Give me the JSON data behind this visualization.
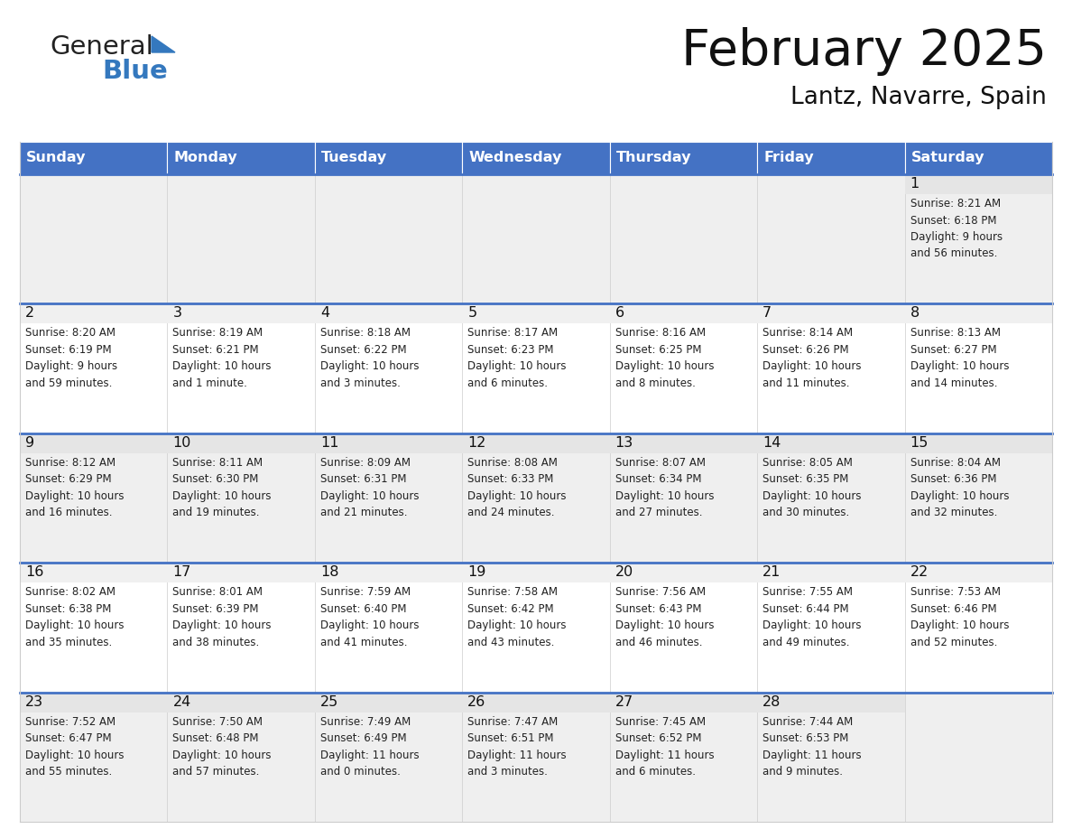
{
  "title": "February 2025",
  "subtitle": "Lantz, Navarre, Spain",
  "header_color": "#4472C4",
  "header_text_color": "#FFFFFF",
  "cell_bg_light": "#EFEFEF",
  "cell_bg_white": "#FFFFFF",
  "divider_color": "#4472C4",
  "border_color": "#CCCCCC",
  "day_names": [
    "Sunday",
    "Monday",
    "Tuesday",
    "Wednesday",
    "Thursday",
    "Friday",
    "Saturday"
  ],
  "days": [
    {
      "day": 1,
      "col": 6,
      "row": 0,
      "sunrise": "8:21 AM",
      "sunset": "6:18 PM",
      "daylight": "9 hours\nand 56 minutes."
    },
    {
      "day": 2,
      "col": 0,
      "row": 1,
      "sunrise": "8:20 AM",
      "sunset": "6:19 PM",
      "daylight": "9 hours\nand 59 minutes."
    },
    {
      "day": 3,
      "col": 1,
      "row": 1,
      "sunrise": "8:19 AM",
      "sunset": "6:21 PM",
      "daylight": "10 hours\nand 1 minute."
    },
    {
      "day": 4,
      "col": 2,
      "row": 1,
      "sunrise": "8:18 AM",
      "sunset": "6:22 PM",
      "daylight": "10 hours\nand 3 minutes."
    },
    {
      "day": 5,
      "col": 3,
      "row": 1,
      "sunrise": "8:17 AM",
      "sunset": "6:23 PM",
      "daylight": "10 hours\nand 6 minutes."
    },
    {
      "day": 6,
      "col": 4,
      "row": 1,
      "sunrise": "8:16 AM",
      "sunset": "6:25 PM",
      "daylight": "10 hours\nand 8 minutes."
    },
    {
      "day": 7,
      "col": 5,
      "row": 1,
      "sunrise": "8:14 AM",
      "sunset": "6:26 PM",
      "daylight": "10 hours\nand 11 minutes."
    },
    {
      "day": 8,
      "col": 6,
      "row": 1,
      "sunrise": "8:13 AM",
      "sunset": "6:27 PM",
      "daylight": "10 hours\nand 14 minutes."
    },
    {
      "day": 9,
      "col": 0,
      "row": 2,
      "sunrise": "8:12 AM",
      "sunset": "6:29 PM",
      "daylight": "10 hours\nand 16 minutes."
    },
    {
      "day": 10,
      "col": 1,
      "row": 2,
      "sunrise": "8:11 AM",
      "sunset": "6:30 PM",
      "daylight": "10 hours\nand 19 minutes."
    },
    {
      "day": 11,
      "col": 2,
      "row": 2,
      "sunrise": "8:09 AM",
      "sunset": "6:31 PM",
      "daylight": "10 hours\nand 21 minutes."
    },
    {
      "day": 12,
      "col": 3,
      "row": 2,
      "sunrise": "8:08 AM",
      "sunset": "6:33 PM",
      "daylight": "10 hours\nand 24 minutes."
    },
    {
      "day": 13,
      "col": 4,
      "row": 2,
      "sunrise": "8:07 AM",
      "sunset": "6:34 PM",
      "daylight": "10 hours\nand 27 minutes."
    },
    {
      "day": 14,
      "col": 5,
      "row": 2,
      "sunrise": "8:05 AM",
      "sunset": "6:35 PM",
      "daylight": "10 hours\nand 30 minutes."
    },
    {
      "day": 15,
      "col": 6,
      "row": 2,
      "sunrise": "8:04 AM",
      "sunset": "6:36 PM",
      "daylight": "10 hours\nand 32 minutes."
    },
    {
      "day": 16,
      "col": 0,
      "row": 3,
      "sunrise": "8:02 AM",
      "sunset": "6:38 PM",
      "daylight": "10 hours\nand 35 minutes."
    },
    {
      "day": 17,
      "col": 1,
      "row": 3,
      "sunrise": "8:01 AM",
      "sunset": "6:39 PM",
      "daylight": "10 hours\nand 38 minutes."
    },
    {
      "day": 18,
      "col": 2,
      "row": 3,
      "sunrise": "7:59 AM",
      "sunset": "6:40 PM",
      "daylight": "10 hours\nand 41 minutes."
    },
    {
      "day": 19,
      "col": 3,
      "row": 3,
      "sunrise": "7:58 AM",
      "sunset": "6:42 PM",
      "daylight": "10 hours\nand 43 minutes."
    },
    {
      "day": 20,
      "col": 4,
      "row": 3,
      "sunrise": "7:56 AM",
      "sunset": "6:43 PM",
      "daylight": "10 hours\nand 46 minutes."
    },
    {
      "day": 21,
      "col": 5,
      "row": 3,
      "sunrise": "7:55 AM",
      "sunset": "6:44 PM",
      "daylight": "10 hours\nand 49 minutes."
    },
    {
      "day": 22,
      "col": 6,
      "row": 3,
      "sunrise": "7:53 AM",
      "sunset": "6:46 PM",
      "daylight": "10 hours\nand 52 minutes."
    },
    {
      "day": 23,
      "col": 0,
      "row": 4,
      "sunrise": "7:52 AM",
      "sunset": "6:47 PM",
      "daylight": "10 hours\nand 55 minutes."
    },
    {
      "day": 24,
      "col": 1,
      "row": 4,
      "sunrise": "7:50 AM",
      "sunset": "6:48 PM",
      "daylight": "10 hours\nand 57 minutes."
    },
    {
      "day": 25,
      "col": 2,
      "row": 4,
      "sunrise": "7:49 AM",
      "sunset": "6:49 PM",
      "daylight": "11 hours\nand 0 minutes."
    },
    {
      "day": 26,
      "col": 3,
      "row": 4,
      "sunrise": "7:47 AM",
      "sunset": "6:51 PM",
      "daylight": "11 hours\nand 3 minutes."
    },
    {
      "day": 27,
      "col": 4,
      "row": 4,
      "sunrise": "7:45 AM",
      "sunset": "6:52 PM",
      "daylight": "11 hours\nand 6 minutes."
    },
    {
      "day": 28,
      "col": 5,
      "row": 4,
      "sunrise": "7:44 AM",
      "sunset": "6:53 PM",
      "daylight": "11 hours\nand 9 minutes."
    }
  ],
  "logo_text_general": "General",
  "logo_text_blue": "Blue",
  "logo_color_general": "#222222",
  "logo_color_blue": "#3478BE",
  "logo_triangle_color": "#3478BE",
  "figwidth": 11.88,
  "figheight": 9.18,
  "dpi": 100
}
